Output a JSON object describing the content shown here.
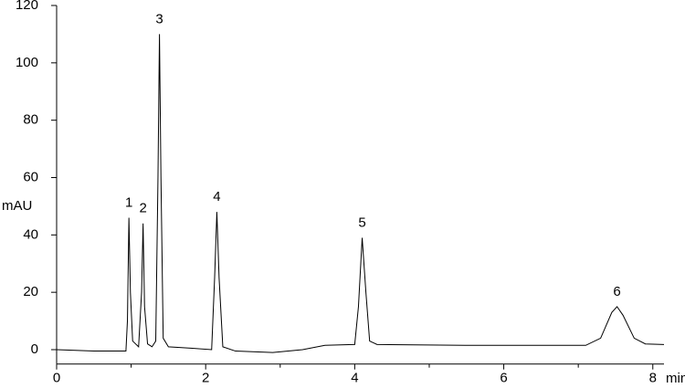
{
  "chart_data": {
    "type": "line",
    "x_label": "min",
    "y_label": "mAU",
    "x": [
      0,
      0.5,
      0.93,
      0.95,
      0.97,
      0.99,
      1.02,
      1.1,
      1.14,
      1.16,
      1.18,
      1.22,
      1.28,
      1.33,
      1.36,
      1.38,
      1.4,
      1.43,
      1.5,
      1.8,
      2.08,
      2.12,
      2.15,
      2.18,
      2.23,
      2.4,
      2.9,
      3.3,
      3.6,
      4.0,
      4.05,
      4.1,
      4.15,
      4.2,
      4.3,
      5.5,
      7.1,
      7.3,
      7.45,
      7.52,
      7.6,
      7.75,
      7.9,
      8.15
    ],
    "values": [
      0,
      -0.5,
      -0.5,
      10,
      46,
      20,
      3,
      1,
      20,
      44,
      15,
      2,
      1,
      3,
      60,
      110,
      60,
      4,
      1,
      0.5,
      0,
      25,
      48,
      25,
      1,
      -0.5,
      -1,
      0,
      1.5,
      1.8,
      15,
      39,
      20,
      3,
      1.8,
      1.5,
      1.5,
      4,
      13,
      15,
      12,
      4,
      2,
      1.8
    ],
    "color": "#000000",
    "annotations": [
      "1",
      "2",
      "3",
      "4",
      "5",
      "6"
    ],
    "xlim": [
      0,
      8.15
    ],
    "ylim": [
      -5,
      120
    ],
    "xticks": [
      0,
      2,
      4,
      6,
      8
    ],
    "xminorticks": [
      1,
      3,
      5,
      7
    ],
    "yticks": [
      0,
      20,
      40,
      60,
      80,
      100,
      120
    ]
  }
}
